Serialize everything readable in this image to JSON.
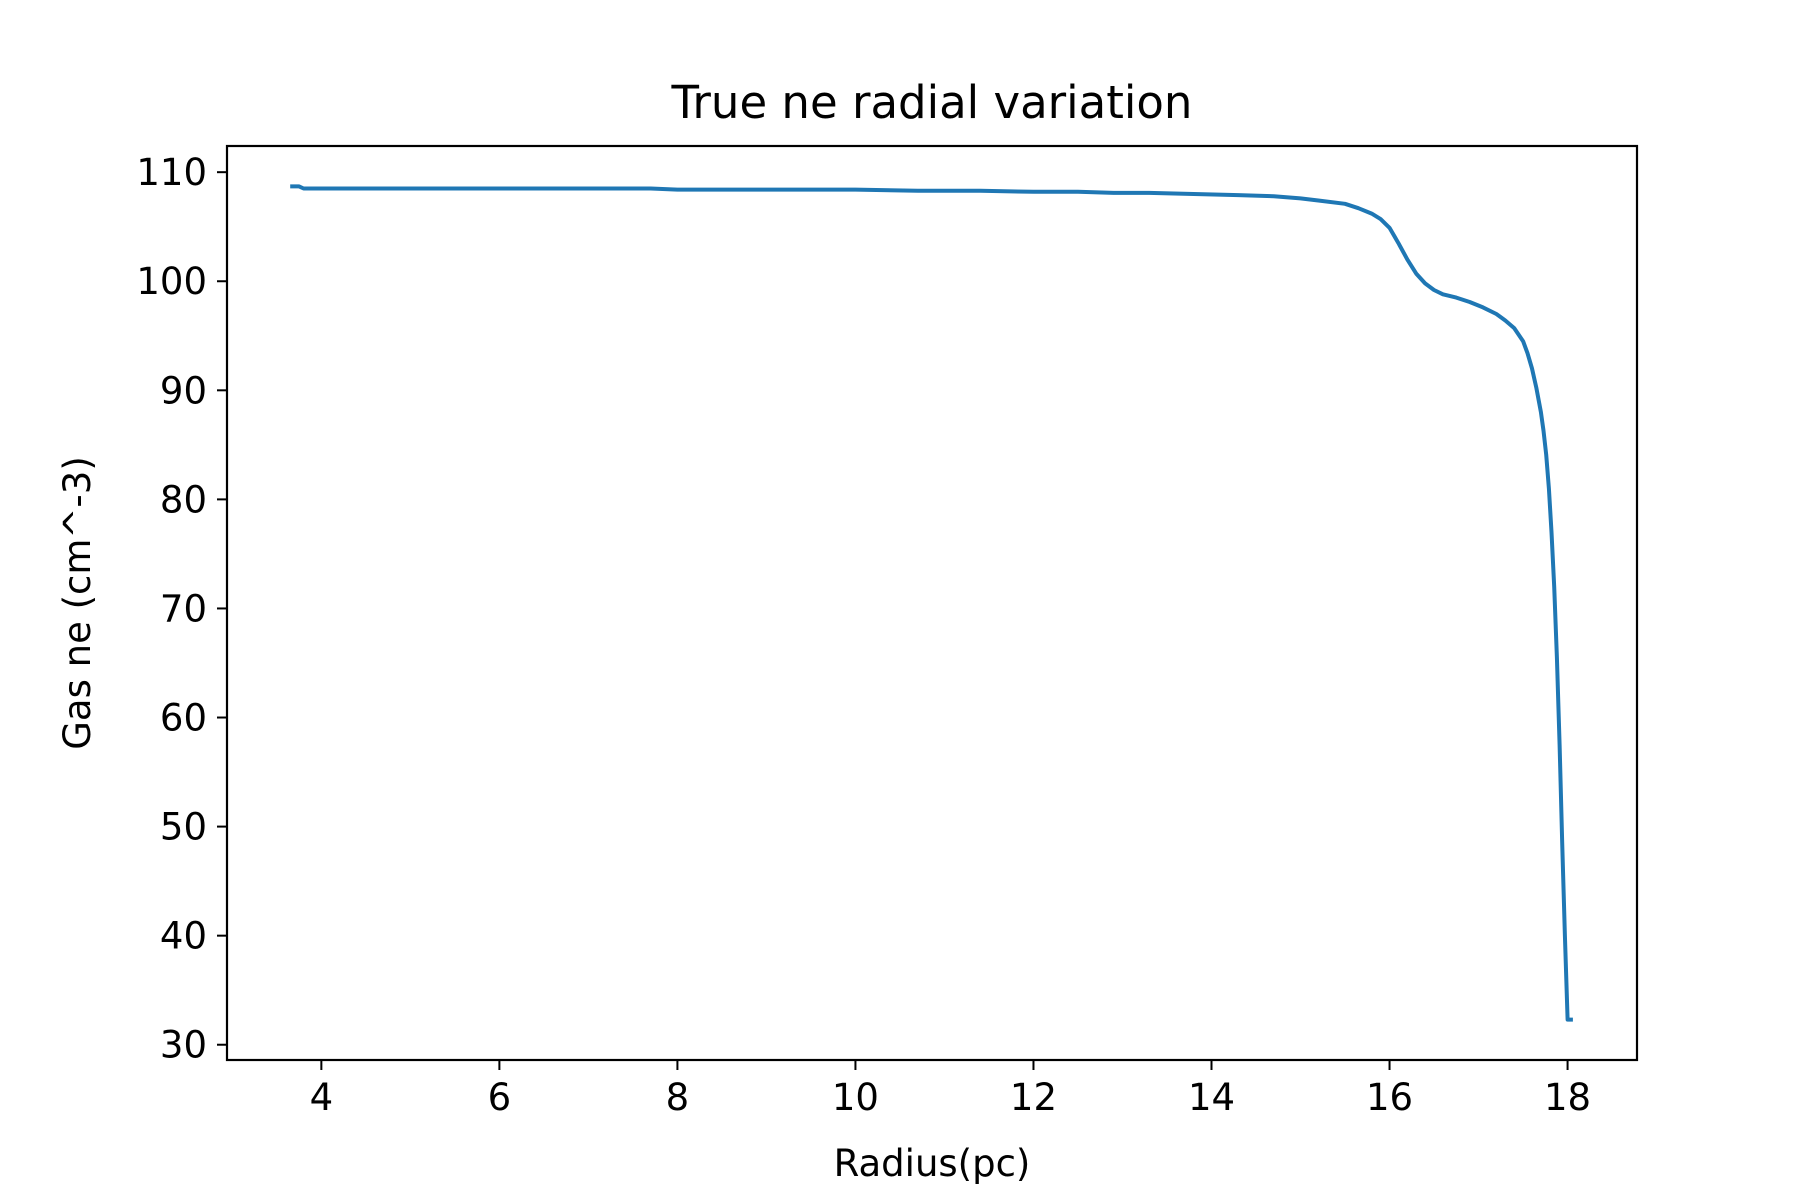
{
  "chart_data": {
    "type": "line",
    "title": "True ne radial variation",
    "xlabel": "Radius(pc)",
    "ylabel": "Gas ne (cm^-3)",
    "xlim": [
      2.94,
      18.78
    ],
    "ylim": [
      28.6,
      112.4
    ],
    "xticks": [
      4,
      6,
      8,
      10,
      12,
      14,
      16,
      18
    ],
    "yticks": [
      30,
      40,
      50,
      60,
      70,
      80,
      90,
      100,
      110
    ],
    "grid": false,
    "legend": "none",
    "line_color": "#1f77b4",
    "series": [
      {
        "x": [
          3.65,
          3.75,
          3.8,
          4.0,
          5.0,
          6.0,
          7.0,
          7.7,
          8.0,
          9.0,
          10.0,
          10.7,
          11.4,
          12.0,
          12.5,
          12.9,
          13.3,
          13.8,
          14.3,
          14.7,
          15.0,
          15.2,
          15.5,
          15.65,
          15.8,
          15.9,
          16.0,
          16.1,
          16.2,
          16.3,
          16.4,
          16.5,
          16.6,
          16.75,
          16.9,
          17.05,
          17.2,
          17.3,
          17.4,
          17.5,
          17.55,
          17.6,
          17.65,
          17.7,
          17.73,
          17.76,
          17.79,
          17.82,
          17.85,
          17.88,
          17.91,
          17.94,
          17.97,
          18.0,
          18.03,
          18.06
        ],
        "y": [
          108.7,
          108.7,
          108.5,
          108.5,
          108.5,
          108.5,
          108.5,
          108.5,
          108.4,
          108.4,
          108.4,
          108.3,
          108.3,
          108.2,
          108.2,
          108.1,
          108.1,
          108.0,
          107.9,
          107.8,
          107.6,
          107.4,
          107.1,
          106.7,
          106.2,
          105.7,
          104.9,
          103.5,
          102.0,
          100.7,
          99.8,
          99.2,
          98.8,
          98.5,
          98.1,
          97.6,
          97.0,
          96.4,
          95.7,
          94.5,
          93.4,
          92.0,
          90.2,
          88.0,
          86.3,
          84.1,
          81.0,
          77.0,
          72.0,
          65.5,
          57.5,
          48.5,
          40.0,
          32.3,
          32.3,
          32.3
        ]
      }
    ]
  }
}
